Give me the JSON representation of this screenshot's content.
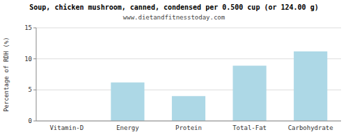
{
  "chart_data": {
    "type": "bar",
    "title": "Soup, chicken mushroom, canned, condensed per 0.500 cup (or 124.00 g)",
    "subtitle": "www.dietandfitnesstoday.com",
    "categories": [
      "Vitamin-D",
      "Energy",
      "Protein",
      "Total-Fat",
      "Carbohydrate"
    ],
    "values": [
      0,
      6.2,
      4.0,
      8.9,
      11.2
    ],
    "color": "#add8e6",
    "ylabel": "Percentage of RDH (%)",
    "ylim": [
      0,
      15
    ],
    "yticks": [
      0,
      5,
      10,
      15
    ],
    "grid": true
  }
}
